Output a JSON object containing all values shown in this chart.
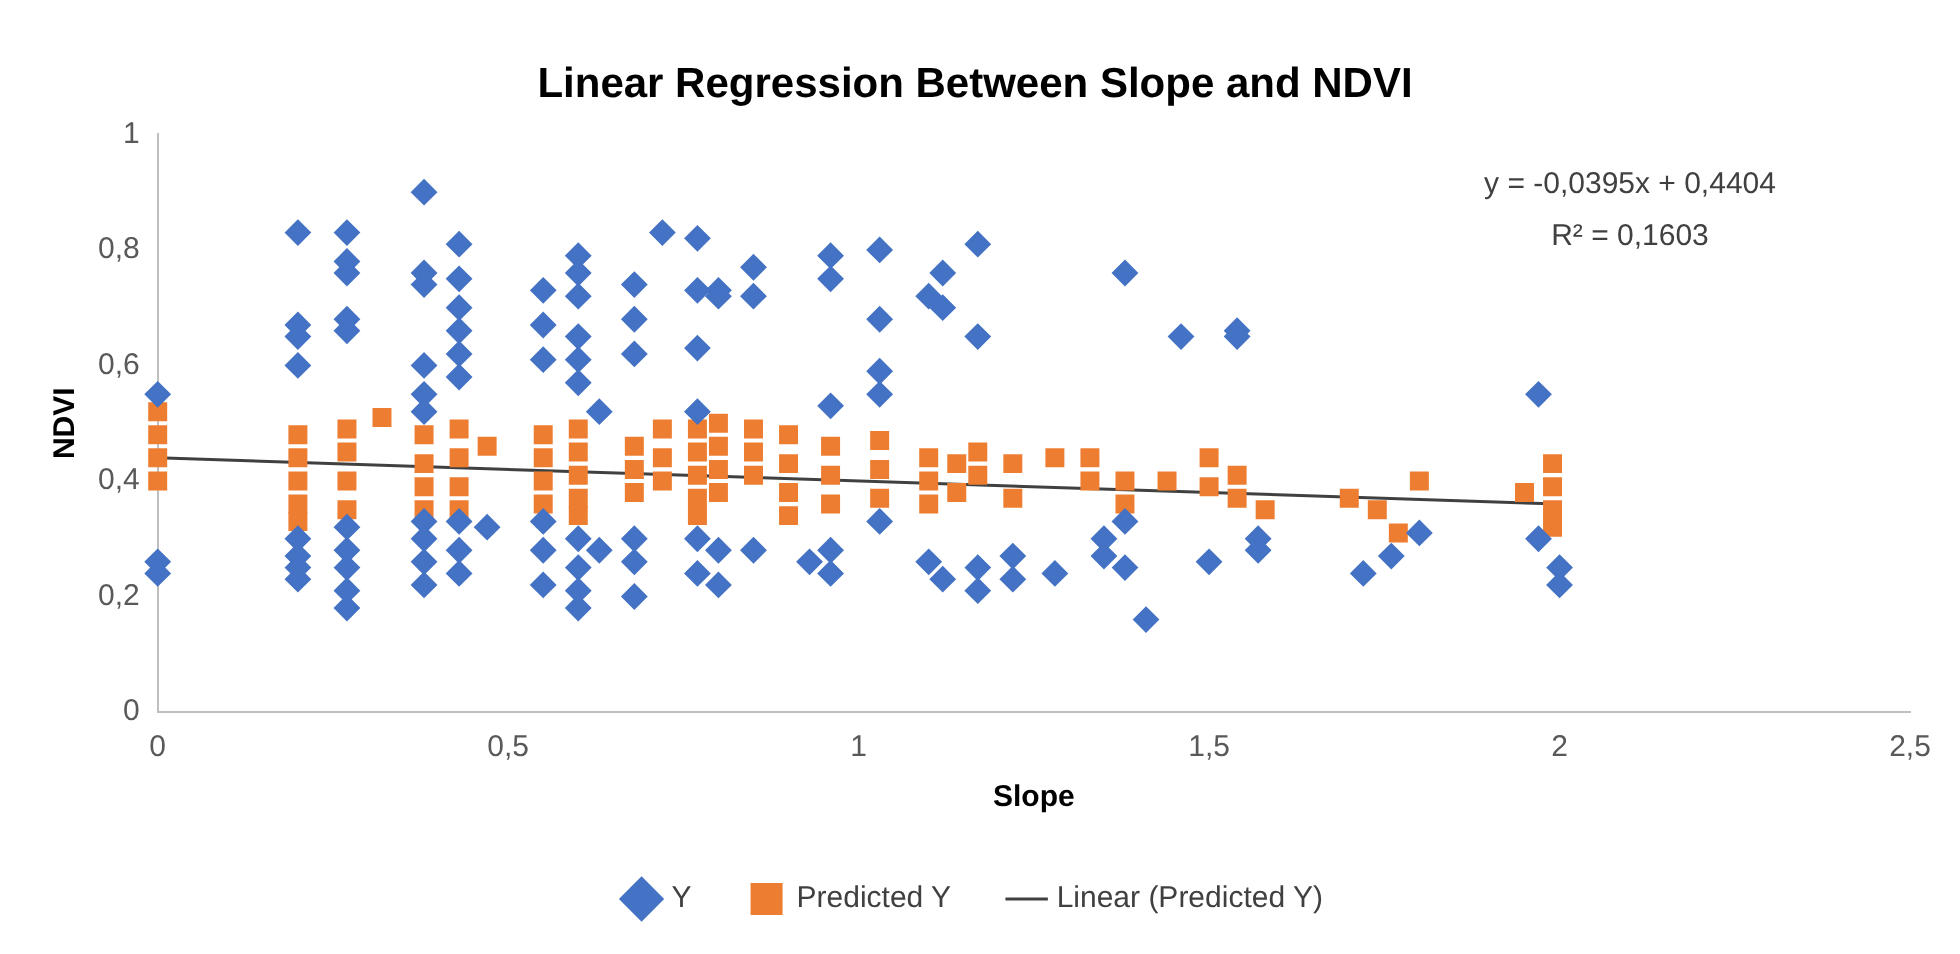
{
  "chart_data": {
    "type": "scatter",
    "title": "Linear Regression Between Slope and NDVI",
    "xlabel": "Slope",
    "ylabel": "NDVI",
    "annotations": [
      "y = -0,0395x + 0,4404",
      "R² = 0,1603"
    ],
    "xlim": [
      0,
      2.5
    ],
    "xticks": [
      0,
      {
        "value": 0.5,
        "label": "0,5"
      },
      1,
      {
        "value": 1.5,
        "label": "1,5"
      },
      2,
      {
        "value": 2.5,
        "label": "2,5"
      }
    ],
    "ylim": [
      0,
      1
    ],
    "yticks": [
      0,
      {
        "value": 0.2,
        "label": "0,2"
      },
      {
        "value": 0.4,
        "label": "0,4"
      },
      {
        "value": 0.6,
        "label": "0,6"
      },
      {
        "value": 0.8,
        "label": "0,8"
      },
      1
    ],
    "grid": false,
    "legend": "bottom",
    "series": [
      {
        "name": "Y",
        "type": "scatter",
        "marker": "diamond",
        "color": "#4472c4",
        "x": [
          0,
          0,
          0,
          0.2,
          0.2,
          0.2,
          0.2,
          0.2,
          0.2,
          0.2,
          0.2,
          0.27,
          0.27,
          0.27,
          0.27,
          0.27,
          0.27,
          0.27,
          0.27,
          0.27,
          0.27,
          0.38,
          0.38,
          0.38,
          0.38,
          0.38,
          0.38,
          0.38,
          0.38,
          0.38,
          0.38,
          0.43,
          0.43,
          0.43,
          0.43,
          0.43,
          0.43,
          0.43,
          0.43,
          0.43,
          0.47,
          0.55,
          0.55,
          0.55,
          0.55,
          0.55,
          0.55,
          0.6,
          0.6,
          0.6,
          0.6,
          0.6,
          0.6,
          0.6,
          0.6,
          0.6,
          0.6,
          0.63,
          0.63,
          0.68,
          0.68,
          0.68,
          0.68,
          0.68,
          0.68,
          0.72,
          0.77,
          0.77,
          0.77,
          0.77,
          0.77,
          0.77,
          0.8,
          0.8,
          0.8,
          0.8,
          0.85,
          0.85,
          0.85,
          0.93,
          0.96,
          0.96,
          0.96,
          0.96,
          0.96,
          1.03,
          1.03,
          1.03,
          1.03,
          1.03,
          1.1,
          1.1,
          1.12,
          1.12,
          1.12,
          1.17,
          1.17,
          1.17,
          1.17,
          1.22,
          1.22,
          1.28,
          1.35,
          1.35,
          1.38,
          1.38,
          1.38,
          1.41,
          1.46,
          1.5,
          1.54,
          1.54,
          1.57,
          1.57,
          1.72,
          1.76,
          1.8,
          1.97,
          1.97,
          2,
          2
        ],
        "values": [
          0.55,
          0.26,
          0.24,
          0.83,
          0.67,
          0.65,
          0.6,
          0.3,
          0.27,
          0.25,
          0.23,
          0.83,
          0.78,
          0.76,
          0.68,
          0.66,
          0.32,
          0.28,
          0.25,
          0.21,
          0.18,
          0.9,
          0.76,
          0.74,
          0.6,
          0.55,
          0.52,
          0.33,
          0.3,
          0.26,
          0.22,
          0.81,
          0.75,
          0.7,
          0.66,
          0.62,
          0.58,
          0.33,
          0.28,
          0.24,
          0.32,
          0.73,
          0.67,
          0.61,
          0.33,
          0.28,
          0.22,
          0.79,
          0.76,
          0.72,
          0.65,
          0.61,
          0.57,
          0.3,
          0.25,
          0.21,
          0.18,
          0.52,
          0.28,
          0.74,
          0.68,
          0.62,
          0.3,
          0.26,
          0.2,
          0.83,
          0.82,
          0.73,
          0.63,
          0.52,
          0.3,
          0.24,
          0.73,
          0.72,
          0.28,
          0.22,
          0.77,
          0.72,
          0.28,
          0.26,
          0.79,
          0.75,
          0.53,
          0.28,
          0.24,
          0.8,
          0.68,
          0.59,
          0.55,
          0.33,
          0.72,
          0.26,
          0.76,
          0.7,
          0.23,
          0.81,
          0.65,
          0.25,
          0.21,
          0.27,
          0.23,
          0.24,
          0.3,
          0.27,
          0.76,
          0.33,
          0.25,
          0.16,
          0.65,
          0.26,
          0.66,
          0.65,
          0.3,
          0.28,
          0.24,
          0.27,
          0.31,
          0.55,
          0.3,
          0.25,
          0.22
        ]
      },
      {
        "name": "Predicted Y",
        "type": "scatter",
        "marker": "square",
        "color": "#ed7d31",
        "x": [
          0,
          0,
          0,
          0,
          0.2,
          0.2,
          0.2,
          0.2,
          0.2,
          0.27,
          0.27,
          0.27,
          0.27,
          0.32,
          0.38,
          0.38,
          0.38,
          0.38,
          0.43,
          0.43,
          0.43,
          0.43,
          0.47,
          0.55,
          0.55,
          0.55,
          0.55,
          0.6,
          0.6,
          0.6,
          0.6,
          0.6,
          0.68,
          0.68,
          0.68,
          0.72,
          0.72,
          0.72,
          0.77,
          0.77,
          0.77,
          0.77,
          0.77,
          0.8,
          0.8,
          0.8,
          0.8,
          0.85,
          0.85,
          0.85,
          0.9,
          0.9,
          0.9,
          0.9,
          0.96,
          0.96,
          0.96,
          1.03,
          1.03,
          1.03,
          1.1,
          1.1,
          1.1,
          1.14,
          1.14,
          1.17,
          1.17,
          1.22,
          1.22,
          1.28,
          1.33,
          1.33,
          1.38,
          1.38,
          1.44,
          1.5,
          1.5,
          1.54,
          1.54,
          1.58,
          1.7,
          1.74,
          1.77,
          1.8,
          1.95,
          1.99,
          1.99,
          1.99,
          1.99
        ],
        "values": [
          0.52,
          0.48,
          0.44,
          0.4,
          0.48,
          0.44,
          0.4,
          0.36,
          0.33,
          0.49,
          0.45,
          0.4,
          0.35,
          0.51,
          0.48,
          0.43,
          0.39,
          0.35,
          0.49,
          0.44,
          0.39,
          0.35,
          0.46,
          0.48,
          0.44,
          0.4,
          0.36,
          0.49,
          0.45,
          0.41,
          0.37,
          0.34,
          0.46,
          0.42,
          0.38,
          0.49,
          0.44,
          0.4,
          0.49,
          0.45,
          0.41,
          0.37,
          0.34,
          0.5,
          0.46,
          0.42,
          0.38,
          0.49,
          0.45,
          0.41,
          0.48,
          0.43,
          0.38,
          0.34,
          0.46,
          0.41,
          0.36,
          0.47,
          0.42,
          0.37,
          0.44,
          0.4,
          0.36,
          0.43,
          0.38,
          0.45,
          0.41,
          0.43,
          0.37,
          0.44,
          0.44,
          0.4,
          0.4,
          0.36,
          0.4,
          0.44,
          0.39,
          0.41,
          0.37,
          0.35,
          0.37,
          0.35,
          0.31,
          0.4,
          0.38,
          0.43,
          0.39,
          0.35,
          0.32
        ]
      },
      {
        "name": "Linear (Predicted Y)",
        "type": "line",
        "marker": "none",
        "line_style": "solid",
        "color": "#404040",
        "x": [
          0,
          2
        ],
        "values": [
          0.44,
          0.36
        ]
      }
    ]
  }
}
